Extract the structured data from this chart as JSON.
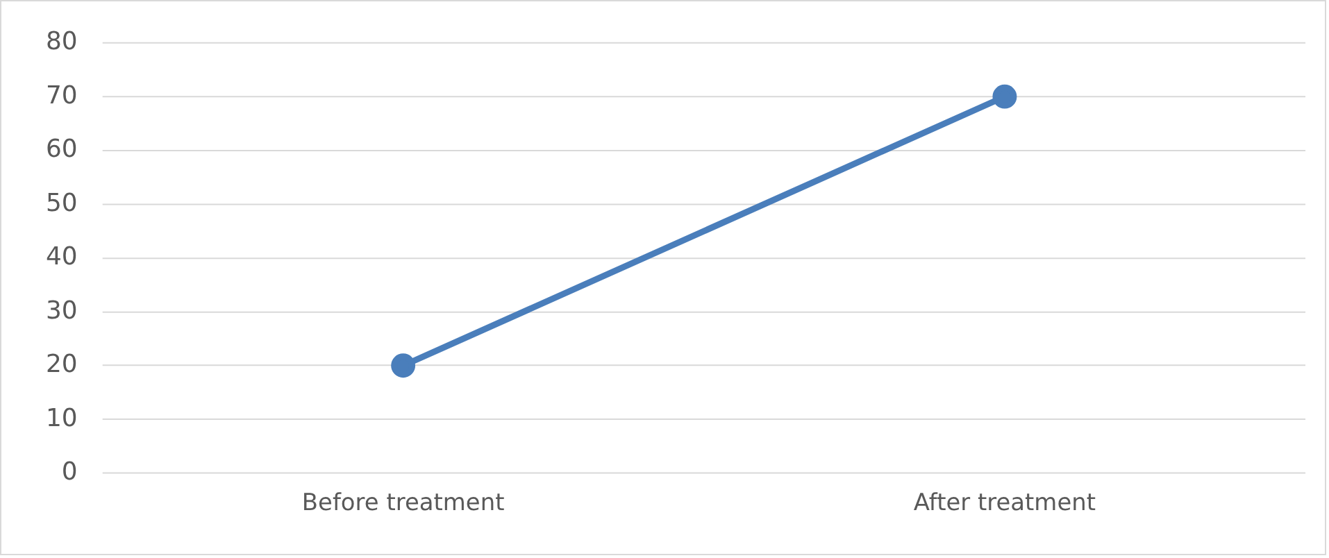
{
  "chart_data": {
    "type": "line",
    "categories": [
      "Before treatment",
      "After treatment"
    ],
    "series": [
      {
        "color": "#4a7ebb",
        "values": [
          20,
          70
        ]
      }
    ],
    "ylim": [
      0,
      80
    ],
    "yticks": [
      0,
      10,
      20,
      30,
      40,
      50,
      60,
      70,
      80
    ],
    "grid": "y",
    "legend": false,
    "marker": "circle",
    "line_style": "solid"
  }
}
